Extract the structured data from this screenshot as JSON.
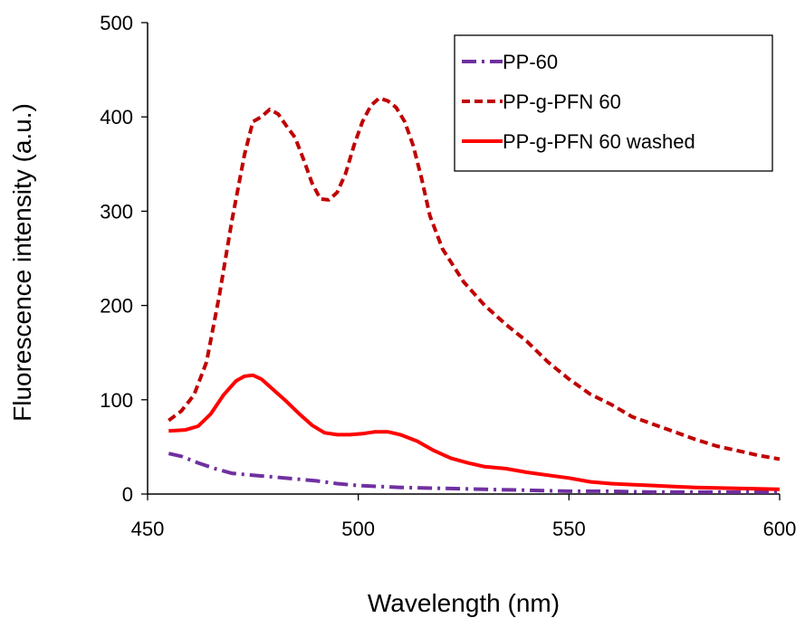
{
  "chart_data": {
    "type": "line",
    "xlabel": "Wavelength (nm)",
    "ylabel": "Fluorescence intensity (a.u.)",
    "xlim": [
      450,
      600
    ],
    "ylim": [
      0,
      500
    ],
    "x_ticks": [
      "450",
      "500",
      "550",
      "600"
    ],
    "y_ticks": [
      "0",
      "100",
      "200",
      "300",
      "400",
      "500"
    ],
    "grid": false,
    "legend_position": "top-right",
    "series": [
      {
        "name": "PP-60",
        "color": "#7030a0",
        "dash": "dash-dot",
        "points": [
          [
            455,
            43
          ],
          [
            458,
            40
          ],
          [
            462,
            33
          ],
          [
            466,
            27
          ],
          [
            470,
            22
          ],
          [
            475,
            20
          ],
          [
            480,
            18
          ],
          [
            485,
            16
          ],
          [
            490,
            14
          ],
          [
            495,
            11
          ],
          [
            500,
            9
          ],
          [
            505,
            8
          ],
          [
            510,
            7
          ],
          [
            520,
            6
          ],
          [
            530,
            5
          ],
          [
            540,
            4
          ],
          [
            550,
            3
          ],
          [
            560,
            3
          ],
          [
            570,
            2
          ],
          [
            580,
            2
          ],
          [
            590,
            2
          ],
          [
            600,
            2
          ]
        ]
      },
      {
        "name": "PP-g-PFN 60",
        "color": "#c00000",
        "dash": "dashed",
        "points": [
          [
            455,
            78
          ],
          [
            458,
            88
          ],
          [
            461,
            105
          ],
          [
            464,
            140
          ],
          [
            467,
            210
          ],
          [
            470,
            290
          ],
          [
            473,
            360
          ],
          [
            475,
            395
          ],
          [
            477,
            400
          ],
          [
            479,
            408
          ],
          [
            481,
            403
          ],
          [
            483,
            390
          ],
          [
            485,
            378
          ],
          [
            487,
            355
          ],
          [
            489,
            330
          ],
          [
            491,
            313
          ],
          [
            493,
            312
          ],
          [
            495,
            320
          ],
          [
            497,
            340
          ],
          [
            499,
            370
          ],
          [
            501,
            395
          ],
          [
            503,
            412
          ],
          [
            505,
            420
          ],
          [
            507,
            417
          ],
          [
            509,
            410
          ],
          [
            511,
            395
          ],
          [
            513,
            370
          ],
          [
            515,
            335
          ],
          [
            517,
            295
          ],
          [
            520,
            260
          ],
          [
            525,
            225
          ],
          [
            530,
            200
          ],
          [
            535,
            180
          ],
          [
            540,
            162
          ],
          [
            545,
            140
          ],
          [
            550,
            122
          ],
          [
            555,
            106
          ],
          [
            560,
            95
          ],
          [
            565,
            82
          ],
          [
            570,
            74
          ],
          [
            575,
            66
          ],
          [
            580,
            58
          ],
          [
            585,
            51
          ],
          [
            590,
            46
          ],
          [
            595,
            41
          ],
          [
            600,
            37
          ]
        ]
      },
      {
        "name": "PP-g-PFN 60 washed",
        "color": "#ff0000",
        "dash": "solid",
        "points": [
          [
            455,
            67
          ],
          [
            459,
            68
          ],
          [
            462,
            72
          ],
          [
            465,
            85
          ],
          [
            468,
            105
          ],
          [
            471,
            120
          ],
          [
            473,
            125
          ],
          [
            475,
            126
          ],
          [
            477,
            122
          ],
          [
            480,
            110
          ],
          [
            483,
            98
          ],
          [
            486,
            85
          ],
          [
            489,
            73
          ],
          [
            492,
            65
          ],
          [
            495,
            63
          ],
          [
            498,
            63
          ],
          [
            501,
            64
          ],
          [
            504,
            66
          ],
          [
            507,
            66
          ],
          [
            510,
            63
          ],
          [
            514,
            56
          ],
          [
            518,
            46
          ],
          [
            522,
            38
          ],
          [
            526,
            33
          ],
          [
            530,
            29
          ],
          [
            535,
            27
          ],
          [
            540,
            23
          ],
          [
            545,
            20
          ],
          [
            550,
            17
          ],
          [
            555,
            13
          ],
          [
            560,
            11
          ],
          [
            565,
            10
          ],
          [
            570,
            9
          ],
          [
            575,
            8
          ],
          [
            580,
            7
          ],
          [
            590,
            6
          ],
          [
            600,
            5
          ]
        ]
      }
    ]
  }
}
